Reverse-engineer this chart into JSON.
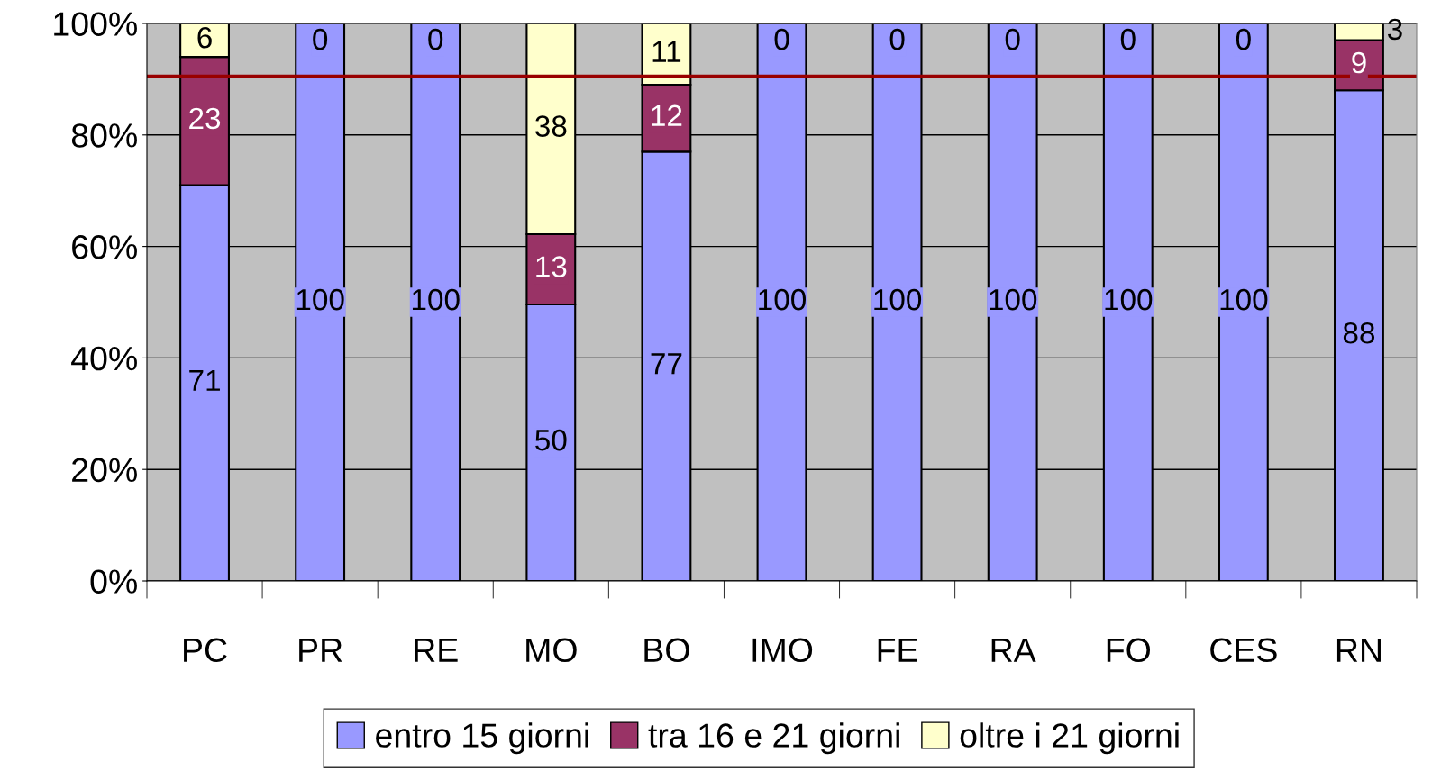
{
  "chart_data": {
    "type": "bar",
    "stacked": true,
    "categories": [
      "PC",
      "PR",
      "RE",
      "MO",
      "BO",
      "IMO",
      "FE",
      "RA",
      "FO",
      "CES",
      "RN"
    ],
    "series": [
      {
        "name": "entro 15 giorni",
        "color": "#9999ff",
        "values": [
          71,
          100,
          100,
          49.6,
          77,
          100,
          100,
          100,
          100,
          100,
          88
        ],
        "value_labels": [
          "71",
          "100",
          "100",
          "50",
          "77",
          "100",
          "100",
          "100",
          "100",
          "100",
          "88"
        ]
      },
      {
        "name": "tra 16 e 21 giorni",
        "color": "#993366",
        "values": [
          23,
          0,
          0,
          12.6,
          12,
          0,
          0,
          0,
          0,
          0,
          9
        ],
        "value_labels": [
          "23",
          null,
          null,
          "13",
          "12",
          null,
          null,
          null,
          null,
          null,
          "9"
        ]
      },
      {
        "name": "oltre i 21 giorni",
        "color": "#ffffcc",
        "values": [
          6,
          0,
          0,
          37.8,
          11,
          0,
          0,
          0,
          0,
          0,
          3
        ],
        "value_labels": [
          "6",
          "0",
          "0",
          "38",
          "11",
          "0",
          "0",
          "0",
          "0",
          "0",
          "3"
        ]
      }
    ],
    "ylim": [
      0,
      100
    ],
    "yticks": [
      {
        "value": 0,
        "label": "0%"
      },
      {
        "value": 20,
        "label": "20%"
      },
      {
        "value": 40,
        "label": "40%"
      },
      {
        "value": 60,
        "label": "60%"
      },
      {
        "value": 80,
        "label": "80%"
      },
      {
        "value": 100,
        "label": "100%"
      }
    ],
    "ref_lines": [
      {
        "axis": "y",
        "value": 90.5,
        "color": "#990000"
      }
    ],
    "grid": "y",
    "legend": "bottom"
  }
}
